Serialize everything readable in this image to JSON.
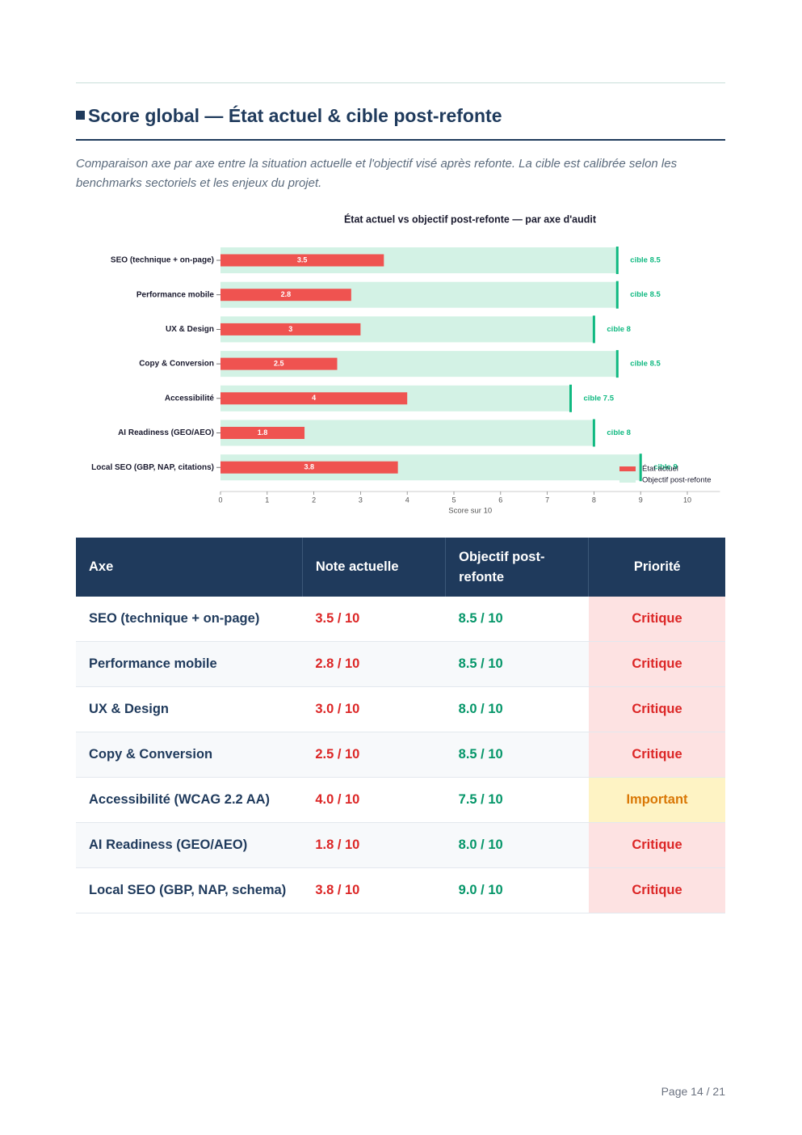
{
  "section": {
    "title": "Score global — État actuel & cible post-refonte",
    "description": "Comparaison axe par axe entre la situation actuelle et l'objectif visé après refonte. La cible est calibrée selon les benchmarks sectoriels et les enjeux du projet."
  },
  "chart_data": {
    "type": "hbar",
    "title": "État actuel vs objectif post-refonte — par axe d'audit",
    "categories": [
      "SEO (technique + on-page)",
      "Performance mobile",
      "UX & Design",
      "Copy & Conversion",
      "Accessibilité",
      "AI Readiness (GEO/AEO)",
      "Local SEO (GBP, NAP, citations)"
    ],
    "series": [
      {
        "name": "État actuel",
        "color": "#ef5350",
        "values": [
          3.5,
          2.8,
          3,
          2.5,
          4,
          1.8,
          3.8
        ]
      },
      {
        "name": "Objectif post-refonte",
        "color": "#d3f2e5",
        "marker_color": "#10b981",
        "values": [
          8.5,
          8.5,
          8,
          8.5,
          7.5,
          8,
          9
        ],
        "value_labels": [
          "cible 8.5",
          "cible 8.5",
          "cible 8",
          "cible 8.5",
          "cible 7.5",
          "cible 8",
          "cible 9"
        ]
      }
    ],
    "xlim": [
      0,
      10.7
    ],
    "xticks": [
      0,
      1,
      2,
      3,
      4,
      5,
      6,
      7,
      8,
      9,
      10
    ],
    "xlabel": "Score sur 10",
    "legend": "lower right"
  },
  "table": {
    "columns": [
      "Axe",
      "Note actuelle",
      "Objectif post-refonte",
      "Priorité"
    ],
    "rows": [
      [
        "SEO (technique + on-page)",
        "3.5 / 10",
        "8.5 / 10",
        "Critique"
      ],
      [
        "Performance mobile",
        "2.8 / 10",
        "8.5 / 10",
        "Critique"
      ],
      [
        "UX & Design",
        "3.0 / 10",
        "8.0 / 10",
        "Critique"
      ],
      [
        "Copy & Conversion",
        "2.5 / 10",
        "8.5 / 10",
        "Critique"
      ],
      [
        "Accessibilité (WCAG 2.2 AA)",
        "4.0 / 10",
        "7.5 / 10",
        "Important"
      ],
      [
        "AI Readiness (GEO/AEO)",
        "1.8 / 10",
        "8.0 / 10",
        "Critique"
      ],
      [
        "Local SEO (GBP, NAP, schema)",
        "3.8 / 10",
        "9.0 / 10",
        "Critique"
      ]
    ]
  },
  "footer": {
    "page": "Page 14 / 21"
  }
}
